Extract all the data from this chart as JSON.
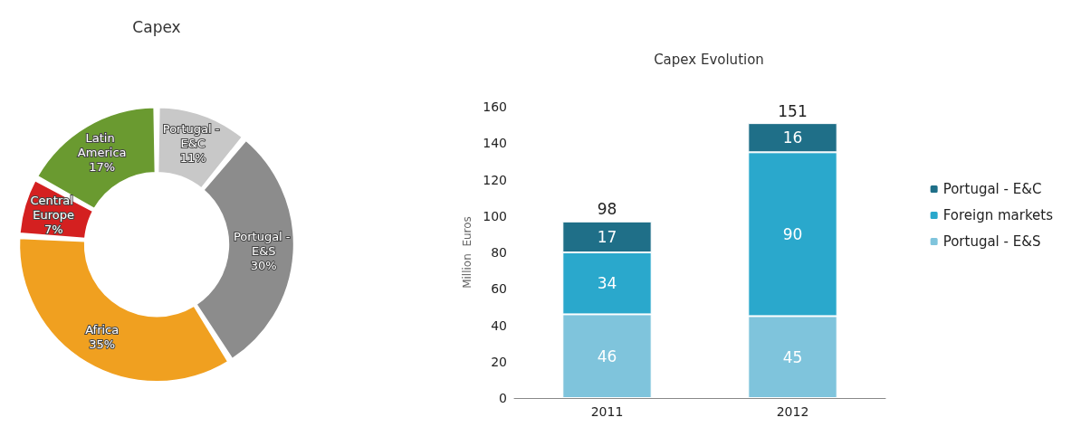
{
  "chart_data": [
    {
      "type": "donut",
      "title": "Capex",
      "categories": [
        "Portugal - E&C",
        "Portugal - E&S",
        "Africa",
        "Central Europe",
        "Latin America"
      ],
      "values": [
        11,
        30,
        35,
        7,
        17
      ],
      "colors": [
        "#c8c8c8",
        "#8c8c8c",
        "#f0a020",
        "#d42020",
        "#6a9a30"
      ],
      "value_labels": [
        "11%",
        "30%",
        "35%",
        "7%",
        "17%"
      ],
      "legend": false
    },
    {
      "type": "bar",
      "title": "Capex Evolution",
      "ylabel": "Million  Euros",
      "categories": [
        "2011",
        "2012"
      ],
      "stacked": true,
      "ylim": [
        0,
        160
      ],
      "yticks": [
        0,
        20,
        40,
        60,
        80,
        100,
        120,
        140,
        160
      ],
      "grid": false,
      "legend": "right",
      "data_labels": true,
      "totals": [
        "98",
        "151"
      ],
      "series": [
        {
          "name": "Portugal - E&S",
          "color": "#7fc4dc",
          "values": [
            46,
            45
          ]
        },
        {
          "name": "Foreign markets",
          "color": "#2aa8cc",
          "values": [
            34,
            90
          ]
        },
        {
          "name": "Portugal - E&C",
          "color": "#1f6f88",
          "values": [
            17,
            16
          ]
        }
      ]
    }
  ]
}
